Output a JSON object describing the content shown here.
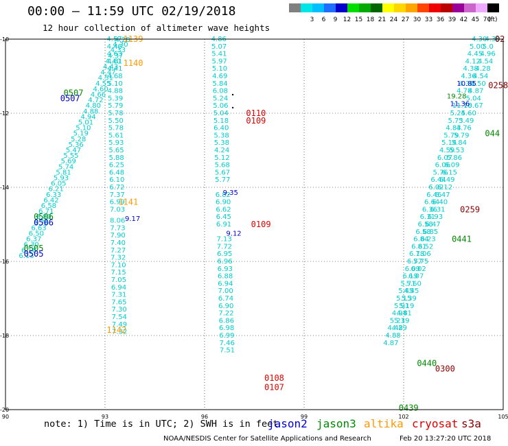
{
  "header": {
    "title": "00:00 — 11:59 UTC 02/19/2018",
    "subtitle": "12 hour collection of altimeter wave heights"
  },
  "color_scale": {
    "unit": "(ft)",
    "entries": [
      {
        "label": "",
        "color": "#808080"
      },
      {
        "label": "3",
        "color": "#00e5e5"
      },
      {
        "label": "6",
        "color": "#00bfff"
      },
      {
        "label": "9",
        "color": "#1e6fff"
      },
      {
        "label": "12",
        "color": "#0000cc"
      },
      {
        "label": "15",
        "color": "#00dd00"
      },
      {
        "label": "18",
        "color": "#00aa00"
      },
      {
        "label": "21",
        "color": "#006600"
      },
      {
        "label": "24",
        "color": "#ffff00"
      },
      {
        "label": "27",
        "color": "#ffd700"
      },
      {
        "label": "30",
        "color": "#ffa500"
      },
      {
        "label": "33",
        "color": "#ff4500"
      },
      {
        "label": "36",
        "color": "#ee0000"
      },
      {
        "label": "39",
        "color": "#bb0000"
      },
      {
        "label": "42",
        "color": "#990099"
      },
      {
        "label": "45",
        "color": "#cc66cc"
      },
      {
        "label": "70",
        "color": "#eeaaff"
      },
      {
        "label": "",
        "color": "#000000"
      }
    ]
  },
  "map": {
    "lon_range": [
      90,
      105
    ],
    "lat_range": [
      -20,
      -10
    ],
    "x_ticks": [
      "90",
      "93",
      "96",
      "99",
      "102",
      "105"
    ],
    "y_ticks": [
      "-10",
      "-12",
      "-14",
      "-16",
      "-18",
      "-20"
    ]
  },
  "colors": {
    "swh": "#00cccc",
    "jason2": "#0000cc",
    "jason3": "#008800",
    "altika": "#ff9900",
    "cryosat": "#dd0000",
    "s3a": "#880000"
  },
  "swh_tracks": [
    {
      "id": "dense-track",
      "points": [
        [
          -15.85,
          "6.13"
        ],
        [
          -15.7,
          "6.18"
        ],
        [
          -15.55,
          "6.30"
        ],
        [
          -15.4,
          "6.37"
        ],
        [
          -15.25,
          "6.50"
        ],
        [
          -15.1,
          "6.63"
        ],
        [
          -14.95,
          "6.76"
        ],
        [
          -14.8,
          "6.80"
        ],
        [
          -14.65,
          "6.71"
        ],
        [
          -14.5,
          "6.58"
        ],
        [
          -14.35,
          "6.42"
        ],
        [
          -14.2,
          "6.33"
        ],
        [
          -14.05,
          "6.21"
        ],
        [
          -13.9,
          "6.05"
        ],
        [
          -13.75,
          "5.93"
        ],
        [
          -13.6,
          "5.81"
        ],
        [
          -13.45,
          "5.74"
        ],
        [
          -13.3,
          "5.69"
        ],
        [
          -13.15,
          "5.55"
        ],
        [
          -13.0,
          "5.47"
        ],
        [
          -12.85,
          "5.36"
        ],
        [
          -12.7,
          "5.28"
        ],
        [
          -12.55,
          "5.19"
        ],
        [
          -12.4,
          "5.10"
        ],
        [
          -12.25,
          "5.01"
        ],
        [
          -12.1,
          "4.94"
        ],
        [
          -11.95,
          "4.88"
        ],
        [
          -11.8,
          "4.80"
        ],
        [
          -11.65,
          "4.72"
        ],
        [
          -11.5,
          "4.66"
        ],
        [
          -11.35,
          "4.60"
        ],
        [
          -11.2,
          "4.55"
        ],
        [
          -11.05,
          "4.51"
        ],
        [
          -10.9,
          "4.47"
        ],
        [
          -10.75,
          "4.43"
        ],
        [
          -10.6,
          "4.40"
        ],
        [
          -10.45,
          "4.37"
        ],
        [
          -10.3,
          "4.33"
        ],
        [
          -10.15,
          "4.30"
        ],
        [
          -10.02,
          "4.28"
        ]
      ]
    },
    {
      "id": "track-93",
      "points": [
        [
          -10.0,
          "4.57"
        ],
        [
          -10.2,
          "4.48"
        ],
        [
          -10.4,
          "4.63"
        ],
        [
          -10.6,
          "4.61"
        ],
        [
          -10.8,
          "4.41"
        ],
        [
          -11.0,
          "4.68"
        ],
        [
          -11.2,
          "5.10"
        ],
        [
          -11.4,
          "4.88"
        ],
        [
          -11.6,
          "5.39"
        ],
        [
          -11.8,
          "5.79"
        ],
        [
          -12.0,
          "5.78"
        ],
        [
          -12.2,
          "5.50"
        ],
        [
          -12.4,
          "5.78"
        ],
        [
          -12.6,
          "5.61"
        ],
        [
          -12.8,
          "5.93"
        ],
        [
          -13.0,
          "5.65"
        ],
        [
          -13.2,
          "5.88"
        ],
        [
          -13.4,
          "6.25"
        ],
        [
          -13.6,
          "6.48"
        ],
        [
          -13.8,
          "6.10"
        ],
        [
          -14.0,
          "6.72"
        ],
        [
          -14.2,
          "7.37"
        ],
        [
          -14.4,
          "6.99"
        ],
        [
          -14.6,
          "7.03"
        ],
        [
          -14.9,
          "8.06"
        ],
        [
          -15.1,
          "7.73"
        ],
        [
          -15.3,
          "7.90"
        ],
        [
          -15.5,
          "7.40"
        ],
        [
          -15.7,
          "7.27"
        ],
        [
          -15.9,
          "7.32"
        ],
        [
          -16.1,
          "7.10"
        ],
        [
          -16.3,
          "7.15"
        ],
        [
          -16.5,
          "7.05"
        ],
        [
          -16.7,
          "6.94"
        ],
        [
          -16.9,
          "7.31"
        ],
        [
          -17.1,
          "7.65"
        ],
        [
          -17.3,
          "7.30"
        ],
        [
          -17.5,
          "7.54"
        ],
        [
          -17.7,
          "7.49"
        ],
        [
          -17.9,
          "7.32"
        ]
      ]
    },
    {
      "id": "track-96",
      "points": [
        [
          -10.0,
          "4.86"
        ],
        [
          -10.2,
          "5.07"
        ],
        [
          -10.4,
          "5.41"
        ],
        [
          -10.6,
          "5.97"
        ],
        [
          -10.8,
          "5.10"
        ],
        [
          -11.0,
          "4.69"
        ],
        [
          -11.2,
          "5.84"
        ],
        [
          -11.4,
          "6.08"
        ],
        [
          -11.6,
          "5.24"
        ],
        [
          -11.8,
          "5.06"
        ],
        [
          -12.0,
          "5.04"
        ],
        [
          -12.2,
          "5.18"
        ],
        [
          -12.4,
          "6.40"
        ],
        [
          -12.6,
          "5.38"
        ],
        [
          -12.8,
          "5.38"
        ],
        [
          -13.0,
          "4.24"
        ],
        [
          -13.2,
          "5.12"
        ],
        [
          -13.4,
          "5.68"
        ],
        [
          -13.6,
          "5.67"
        ],
        [
          -13.8,
          "5.77"
        ],
        [
          -14.2,
          "6.82"
        ],
        [
          -14.4,
          "6.90"
        ],
        [
          -14.6,
          "6.62"
        ],
        [
          -14.8,
          "6.45"
        ],
        [
          -15.0,
          "6.91"
        ],
        [
          -15.4,
          "7.13"
        ],
        [
          -15.6,
          "7.72"
        ],
        [
          -15.8,
          "6.95"
        ],
        [
          -16.0,
          "6.96"
        ],
        [
          -16.2,
          "6.93"
        ],
        [
          -16.4,
          "6.88"
        ],
        [
          -16.6,
          "6.94"
        ],
        [
          -16.8,
          "7.00"
        ],
        [
          -17.0,
          "6.74"
        ],
        [
          -17.2,
          "6.90"
        ],
        [
          -17.4,
          "7.22"
        ],
        [
          -17.6,
          "6.86"
        ],
        [
          -17.8,
          "6.98"
        ],
        [
          -18.0,
          "6.99"
        ],
        [
          -18.2,
          "7.46"
        ],
        [
          -18.4,
          "7.51"
        ]
      ]
    },
    {
      "id": "track-east-a",
      "points": [
        [
          -10.0,
          "4.30"
        ],
        [
          -10.2,
          "5.00"
        ],
        [
          -10.4,
          "4.45"
        ],
        [
          -10.6,
          "4.12"
        ],
        [
          -10.8,
          "4.38"
        ],
        [
          -11.0,
          "4.36"
        ],
        [
          -11.2,
          "4.30"
        ],
        [
          -11.4,
          "4.78"
        ],
        [
          -11.8,
          "11.76"
        ],
        [
          -12.0,
          "5.24"
        ],
        [
          -12.2,
          "5.73"
        ],
        [
          -12.4,
          "4.83"
        ],
        [
          -12.6,
          "5.79"
        ],
        [
          -12.8,
          "5.14"
        ],
        [
          -13.0,
          "4.59"
        ],
        [
          -13.2,
          "6.07"
        ],
        [
          -13.4,
          "6.06"
        ],
        [
          -13.6,
          "5.76"
        ],
        [
          -13.8,
          "6.44"
        ],
        [
          -14.0,
          "6.02"
        ],
        [
          -14.2,
          "6.46"
        ],
        [
          -14.4,
          "6.64"
        ],
        [
          -14.6,
          "6.36"
        ],
        [
          -14.8,
          "6.31"
        ],
        [
          -15.0,
          "6.58"
        ],
        [
          -15.2,
          "6.58"
        ],
        [
          -15.4,
          "6.84"
        ],
        [
          -15.6,
          "6.81"
        ],
        [
          -15.8,
          "6.18"
        ],
        [
          -16.0,
          "6.77"
        ],
        [
          -16.2,
          "6.09"
        ],
        [
          -16.4,
          "6.19"
        ],
        [
          -16.6,
          "5.71"
        ],
        [
          -16.8,
          "5.45"
        ],
        [
          -17.0,
          "5.15"
        ],
        [
          -17.2,
          "5.91"
        ],
        [
          -17.4,
          "4.94"
        ],
        [
          -17.6,
          "5.23"
        ],
        [
          -17.8,
          "4.48"
        ],
        [
          -18.0,
          "4.88"
        ],
        [
          -18.2,
          "4.87"
        ]
      ]
    },
    {
      "id": "track-east-b",
      "points": [
        [
          -10.0,
          "4.30"
        ],
        [
          -10.2,
          "5.0"
        ],
        [
          -10.4,
          "4.96"
        ],
        [
          -10.6,
          "4.54"
        ],
        [
          -10.8,
          "4.28"
        ],
        [
          -11.0,
          "4.54"
        ],
        [
          -11.2,
          "4.50"
        ],
        [
          -11.4,
          "4.87"
        ],
        [
          -11.6,
          "5.04"
        ],
        [
          -11.8,
          "10.67"
        ],
        [
          -12.0,
          "5.60"
        ],
        [
          -12.2,
          "5.49"
        ],
        [
          -12.4,
          "4.76"
        ],
        [
          -12.6,
          "5.79"
        ],
        [
          -12.8,
          "5.84"
        ],
        [
          -13.0,
          "5.53"
        ],
        [
          -13.2,
          "5.86"
        ],
        [
          -13.4,
          "6.09"
        ],
        [
          -13.6,
          "6.15"
        ],
        [
          -13.8,
          "6.49"
        ],
        [
          -14.0,
          "6.12"
        ],
        [
          -14.2,
          "6.47"
        ],
        [
          -14.4,
          "6.40"
        ],
        [
          -14.6,
          "6.31"
        ],
        [
          -14.8,
          "6.93"
        ],
        [
          -15.0,
          "6.47"
        ],
        [
          -15.2,
          "6.85"
        ],
        [
          -15.4,
          "6.23"
        ],
        [
          -15.6,
          "6.52"
        ],
        [
          -15.8,
          "7.06"
        ],
        [
          -16.0,
          "5.75"
        ],
        [
          -16.2,
          "6.02"
        ],
        [
          -16.4,
          "6.07"
        ],
        [
          -16.6,
          "5.60"
        ],
        [
          -16.8,
          "4.45"
        ],
        [
          -17.0,
          "5.39"
        ],
        [
          -17.2,
          "5.19"
        ],
        [
          -17.4,
          "4.81"
        ],
        [
          -17.6,
          "5.19"
        ],
        [
          -17.8,
          "4.29"
        ]
      ]
    }
  ],
  "swh_highlights": [
    {
      "lon": 93.6,
      "lat": -14.85,
      "text": "9.17",
      "color": "#0000cc"
    },
    {
      "lon": 96.55,
      "lat": -14.15,
      "text": "9.35",
      "color": "#0000cc"
    },
    {
      "lon": 96.65,
      "lat": -15.25,
      "text": "9.12",
      "color": "#0000cc"
    },
    {
      "lon": 103.4,
      "lat": -11.75,
      "text": "11.36",
      "color": "#0000cc"
    },
    {
      "lon": 103.3,
      "lat": -11.55,
      "text": "19.28",
      "color": "#008800"
    },
    {
      "lon": 103.6,
      "lat": -11.2,
      "text": "10.85",
      "color": "#0000cc"
    }
  ],
  "time_labels": [
    {
      "lon": 93.55,
      "lat": -10.0,
      "text": "1139",
      "sat": "altika"
    },
    {
      "lon": 93.55,
      "lat": -10.65,
      "text": "1140",
      "sat": "altika"
    },
    {
      "lon": 93.4,
      "lat": -14.4,
      "text": "1141",
      "sat": "altika"
    },
    {
      "lon": 93.05,
      "lat": -17.85,
      "text": "1142",
      "sat": "altika"
    },
    {
      "lon": 91.75,
      "lat": -11.45,
      "text": "0507",
      "sat": "jason3"
    },
    {
      "lon": 91.65,
      "lat": -11.6,
      "text": "0507",
      "sat": "jason2"
    },
    {
      "lon": 90.85,
      "lat": -14.8,
      "text": "0506",
      "sat": "jason3"
    },
    {
      "lon": 90.85,
      "lat": -14.95,
      "text": "0506",
      "sat": "jason2"
    },
    {
      "lon": 90.55,
      "lat": -15.65,
      "text": "0505",
      "sat": "jason3"
    },
    {
      "lon": 90.55,
      "lat": -15.8,
      "text": "0505",
      "sat": "jason2"
    },
    {
      "lon": 97.25,
      "lat": -12.0,
      "text": "0110",
      "sat": "cryosat"
    },
    {
      "lon": 97.25,
      "lat": -12.2,
      "text": "0109",
      "sat": "cryosat"
    },
    {
      "lon": 97.4,
      "lat": -15.0,
      "text": "0109",
      "sat": "cryosat"
    },
    {
      "lon": 97.8,
      "lat": -19.15,
      "text": "0108",
      "sat": "cryosat"
    },
    {
      "lon": 97.8,
      "lat": -19.4,
      "text": "0107",
      "sat": "cryosat"
    },
    {
      "lon": 104.75,
      "lat": -10.0,
      "text": "02",
      "sat": "s3a"
    },
    {
      "lon": 104.55,
      "lat": -11.25,
      "text": "0258",
      "sat": "s3a"
    },
    {
      "lon": 104.45,
      "lat": -12.55,
      "text": "044",
      "sat": "jason3"
    },
    {
      "lon": 103.7,
      "lat": -14.6,
      "text": "0259",
      "sat": "s3a"
    },
    {
      "lon": 103.45,
      "lat": -15.4,
      "text": "0441",
      "sat": "jason3"
    },
    {
      "lon": 102.4,
      "lat": -18.75,
      "text": "0440",
      "sat": "jason3"
    },
    {
      "lon": 102.95,
      "lat": -18.9,
      "text": "0300",
      "sat": "s3a"
    },
    {
      "lon": 101.85,
      "lat": -19.95,
      "text": "0439",
      "sat": "jason3"
    }
  ],
  "footer": {
    "note": "note: 1) Time is in UTC; 2) SWH is in feet",
    "legend": [
      {
        "label": "jason2",
        "key": "jason2"
      },
      {
        "label": "jason3",
        "key": "jason3"
      },
      {
        "label": "altika",
        "key": "altika"
      },
      {
        "label": "cryosat",
        "key": "cryosat"
      },
      {
        "label": "s3a",
        "key": "s3a"
      }
    ],
    "credit": "NOAA/NESDIS Center for Satellite Applications and Research",
    "timestamp": "Feb 20 13:27:20 UTC 2018"
  }
}
